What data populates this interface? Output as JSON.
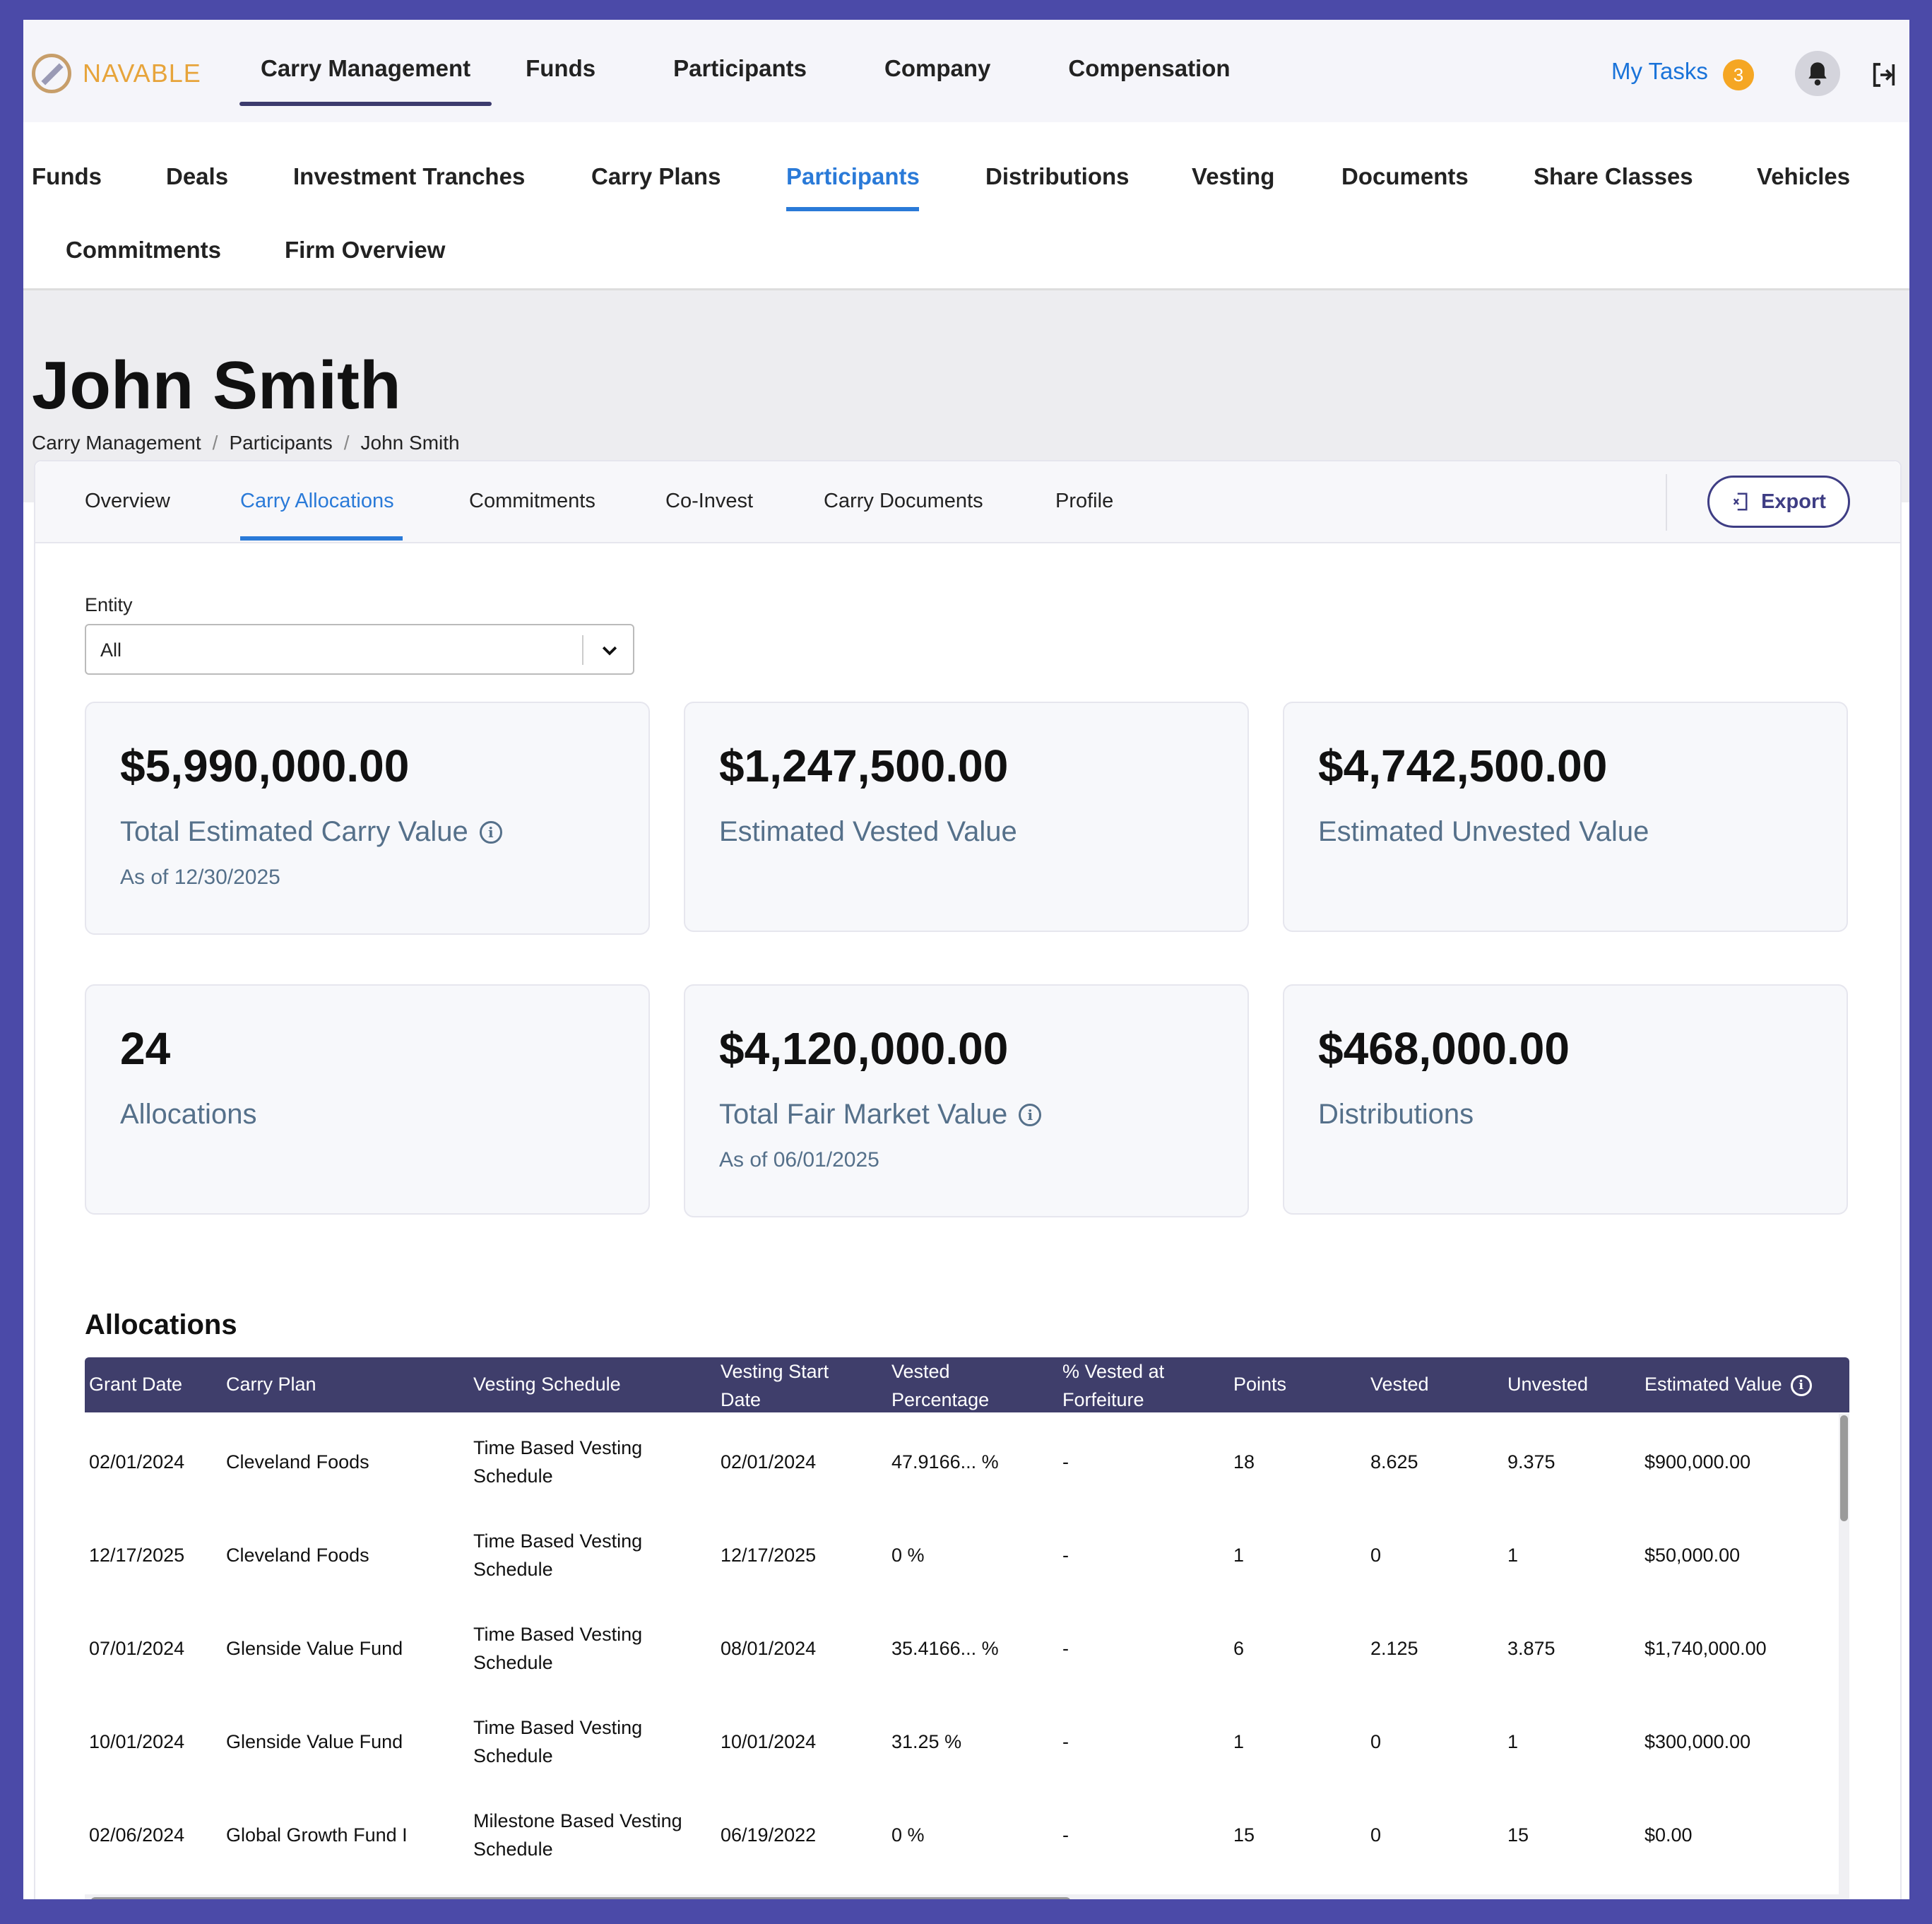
{
  "app": {
    "logo_text": "NAVABLE"
  },
  "main_nav": [
    "Carry Management",
    "Funds",
    "Participants",
    "Company",
    "Compensation"
  ],
  "header_right": {
    "my_tasks": "My Tasks",
    "task_count": "3"
  },
  "sub_nav": [
    "Funds",
    "Deals",
    "Investment Tranches",
    "Carry Plans",
    "Participants",
    "Distributions",
    "Vesting",
    "Documents",
    "Share Classes",
    "Vehicles",
    "Commitments",
    "Firm Overview"
  ],
  "page": {
    "title": "John Smith",
    "breadcrumb": [
      "Carry Management",
      "Participants",
      "John Smith"
    ],
    "breadcrumb_sep": "/"
  },
  "tabs": [
    "Overview",
    "Carry Allocations",
    "Commitments",
    "Co-Invest",
    "Carry Documents",
    "Profile"
  ],
  "export_label": "Export",
  "entity": {
    "label": "Entity",
    "value": "All"
  },
  "cards": [
    {
      "value": "$5,990,000.00",
      "label": "Total Estimated Carry Value",
      "sub": "As of 12/30/2025"
    },
    {
      "value": "$1,247,500.00",
      "label": "Estimated Vested Value",
      "sub": ""
    },
    {
      "value": "$4,742,500.00",
      "label": "Estimated Unvested Value",
      "sub": ""
    },
    {
      "value": "24",
      "label": "Allocations",
      "sub": ""
    },
    {
      "value": "$4,120,000.00",
      "label": "Total Fair Market Value",
      "sub": "As of 06/01/2025"
    },
    {
      "value": "$468,000.00",
      "label": "Distributions",
      "sub": ""
    }
  ],
  "allocations": {
    "title": "Allocations",
    "headers": [
      [
        "Grant Date"
      ],
      [
        "Carry Plan"
      ],
      [
        "Vesting Schedule"
      ],
      [
        "Vesting Start",
        "Date"
      ],
      [
        "Vested",
        "Percentage"
      ],
      [
        "% Vested at",
        "Forfeiture"
      ],
      [
        "Points"
      ],
      [
        "Vested"
      ],
      [
        "Unvested"
      ],
      [
        "Estimated Value"
      ]
    ],
    "rows": [
      {
        "grant_date": "02/01/2024",
        "carry_plan": "Cleveland Foods",
        "schedule": [
          "Time Based Vesting",
          "Schedule"
        ],
        "start": "02/01/2024",
        "vested_pct": "47.9166... %",
        "forfeit": "-",
        "points": "18",
        "vested": "8.625",
        "unvested": "9.375",
        "value": "$900,000.00"
      },
      {
        "grant_date": "12/17/2025",
        "carry_plan": "Cleveland Foods",
        "schedule": [
          "Time Based Vesting",
          "Schedule"
        ],
        "start": "12/17/2025",
        "vested_pct": "0 %",
        "forfeit": "-",
        "points": "1",
        "vested": "0",
        "unvested": "1",
        "value": "$50,000.00"
      },
      {
        "grant_date": "07/01/2024",
        "carry_plan": "Glenside Value Fund",
        "schedule": [
          "Time Based Vesting",
          "Schedule"
        ],
        "start": "08/01/2024",
        "vested_pct": "35.4166... %",
        "forfeit": "-",
        "points": "6",
        "vested": "2.125",
        "unvested": "3.875",
        "value": "$1,740,000.00"
      },
      {
        "grant_date": "10/01/2024",
        "carry_plan": "Glenside Value Fund",
        "schedule": [
          "Time Based Vesting",
          "Schedule"
        ],
        "start": "10/01/2024",
        "vested_pct": "31.25 %",
        "forfeit": "-",
        "points": "1",
        "vested": "0",
        "unvested": "1",
        "value": "$300,000.00"
      },
      {
        "grant_date": "02/06/2024",
        "carry_plan": "Global Growth Fund I",
        "schedule": [
          "Milestone Based Vesting",
          "Schedule"
        ],
        "start": "06/19/2022",
        "vested_pct": "0 %",
        "forfeit": "-",
        "points": "15",
        "vested": "0",
        "unvested": "15",
        "value": "$0.00"
      }
    ]
  }
}
